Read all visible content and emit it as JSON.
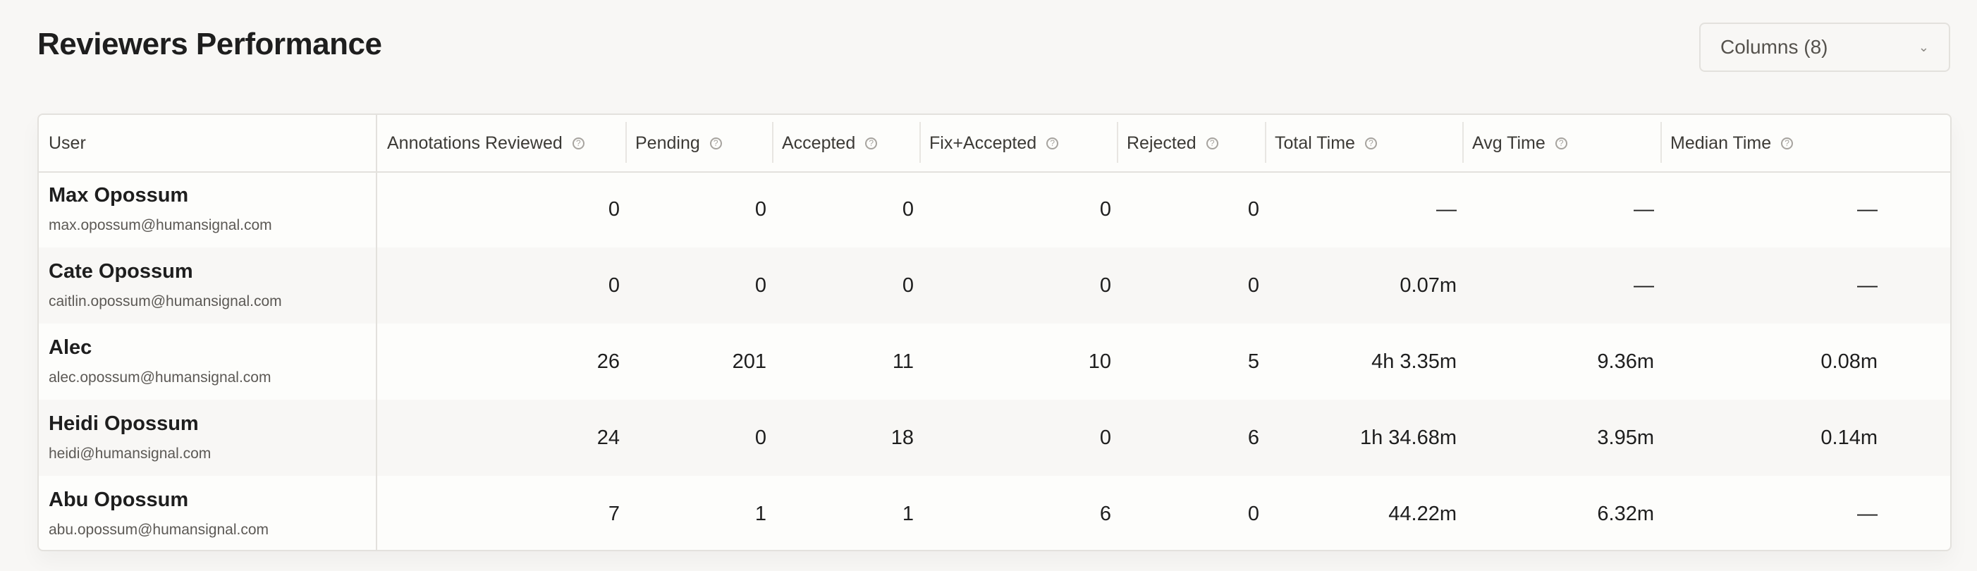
{
  "page": {
    "title": "Reviewers Performance"
  },
  "columns_button": {
    "label": "Columns (8)",
    "icon": "chevron-down-icon"
  },
  "table": {
    "headers": [
      "User",
      "Annotations Reviewed",
      "Pending",
      "Accepted",
      "Fix+Accepted",
      "Rejected",
      "Total Time",
      "Avg Time",
      "Median Time"
    ],
    "rows": [
      {
        "name": "Max Opossum",
        "email": "max.opossum@humansignal.com",
        "values": [
          "0",
          "0",
          "0",
          "0",
          "0",
          "—",
          "—",
          "—"
        ]
      },
      {
        "name": "Cate Opossum",
        "email": "caitlin.opossum@humansignal.com",
        "values": [
          "0",
          "0",
          "0",
          "0",
          "0",
          "0.07m",
          "—",
          "—"
        ]
      },
      {
        "name": "Alec",
        "email": "alec.opossum@humansignal.com",
        "values": [
          "26",
          "201",
          "11",
          "10",
          "5",
          "4h 3.35m",
          "9.36m",
          "0.08m"
        ]
      },
      {
        "name": "Heidi Opossum",
        "email": "heidi@humansignal.com",
        "values": [
          "24",
          "0",
          "18",
          "0",
          "6",
          "1h 34.68m",
          "3.95m",
          "0.14m"
        ]
      },
      {
        "name": "Abu Opossum",
        "email": "abu.opossum@humansignal.com",
        "values": [
          "7",
          "1",
          "1",
          "6",
          "0",
          "44.22m",
          "6.32m",
          "—"
        ]
      }
    ]
  }
}
